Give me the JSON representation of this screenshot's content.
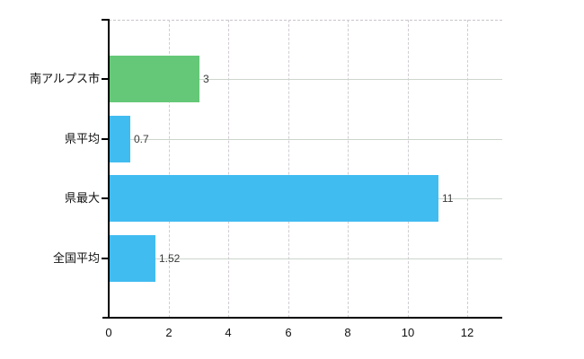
{
  "chart_data": {
    "type": "bar",
    "orientation": "horizontal",
    "categories": [
      "南アルプス市",
      "県平均",
      "県最大",
      "全国平均"
    ],
    "values": [
      3,
      0.7,
      11,
      1.52
    ],
    "value_labels": [
      "3",
      "0.7",
      "11",
      "1.52"
    ],
    "bar_colors": [
      "#65c878",
      "#41bcf1",
      "#41bcf1",
      "#41bcf1"
    ],
    "x_tick_labels": [
      "0",
      "2",
      "4",
      "6",
      "8",
      "10",
      "12"
    ],
    "x_tick_values": [
      0,
      2,
      4,
      6,
      8,
      10,
      12
    ],
    "xlim": [
      0,
      13.17
    ],
    "grid": true,
    "legend": "none",
    "colors": {
      "green_bar": "#65c878",
      "blue_bar": "#41bcf1",
      "h_gridline": "#ccd5cc",
      "v_gridline": "#d2ccd4",
      "axis": "#000000",
      "background": "#ffffff",
      "label_text": "#111111",
      "value_text": "#3a3a3a"
    }
  }
}
